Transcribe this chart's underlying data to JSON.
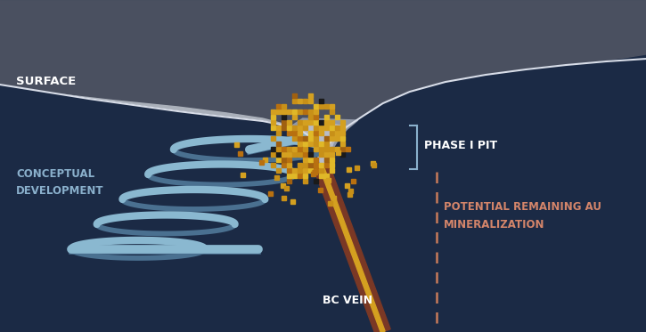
{
  "bg_color": "#1b2a45",
  "bg_top_color": "#4a5060",
  "surface_label": "SURFACE",
  "phase_pit_label": "PHASE I PIT",
  "conceptual_label": "CONCEPTUAL\nDEVELOPMENT",
  "bc_vein_label": "BC VEIN",
  "potential_label": "POTENTIAL REMAINING AU\nMINERALIZATION",
  "text_color_white": "#ffffff",
  "text_color_blue": "#8ab0cc",
  "text_color_orange": "#d4856a",
  "spiral_color": "#8ab8d0",
  "spiral_shadow": "#4a7090",
  "vein_brown": "#7a3825",
  "vein_gold": "#d4a020",
  "rock_dark": "#6a7080",
  "rock_mid": "#8a9098",
  "rock_light": "#aab0ba",
  "pit_inner": "#b8bcc8",
  "dashed_color": "#c87a5a",
  "bracket_color": "#8ab0cc"
}
